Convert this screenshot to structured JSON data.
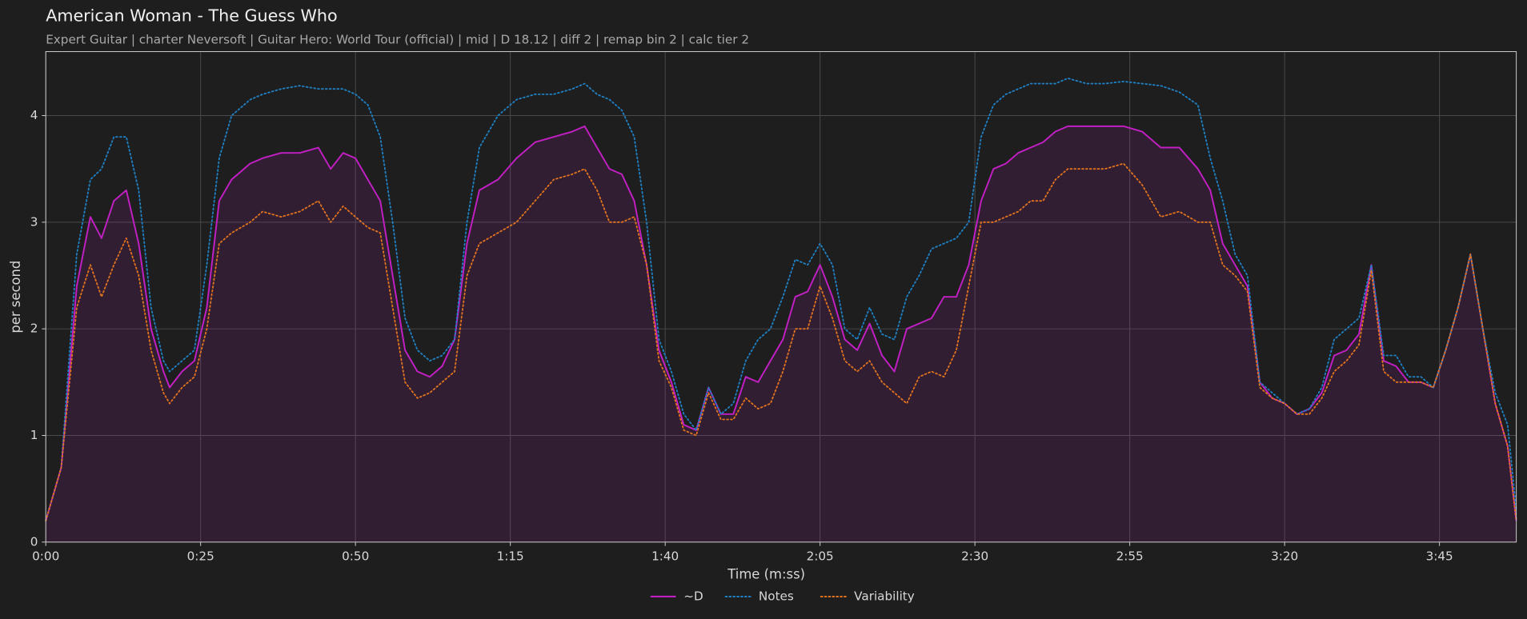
{
  "chart_data": {
    "type": "line",
    "title": "American Woman - The Guess Who",
    "subtitle": "Expert Guitar  |  charter Neversoft  |  Guitar Hero: World Tour (official)  |  mid  |  D 18.12  |  diff 2  |  remap bin 2  |  calc tier 2",
    "x_label": "Time (m:ss)",
    "y_label": "per second",
    "x": [
      0,
      2.5,
      5,
      7.2,
      9,
      11,
      13,
      15,
      17,
      19,
      20,
      22,
      24,
      26,
      28,
      30,
      33,
      35,
      38,
      41,
      44,
      46,
      48,
      50,
      52,
      54,
      56,
      58,
      60,
      62,
      64,
      66,
      68,
      70,
      73,
      76,
      79,
      82,
      85,
      87,
      89,
      91,
      93,
      95,
      97,
      99,
      101,
      103,
      105,
      107,
      109,
      111,
      113,
      115,
      117,
      119,
      121,
      123,
      125,
      127,
      129,
      131,
      133,
      135,
      137,
      139,
      141,
      143,
      145,
      147,
      149,
      151,
      153,
      155,
      157,
      159,
      161,
      163,
      165,
      168,
      171,
      174,
      177,
      180,
      183,
      186,
      188,
      190,
      192,
      194,
      196,
      198,
      200,
      202,
      204,
      206,
      208,
      210,
      212,
      214,
      216,
      218,
      220,
      222,
      224,
      226,
      228,
      230,
      232,
      234,
      236,
      237.4
    ],
    "series": [
      {
        "name": "~D",
        "color": "#c21fc4",
        "style": "solid",
        "values": [
          0.2,
          0.7,
          2.4,
          3.05,
          2.85,
          3.2,
          3.3,
          2.8,
          2.0,
          1.6,
          1.45,
          1.6,
          1.7,
          2.2,
          3.2,
          3.4,
          3.55,
          3.6,
          3.65,
          3.65,
          3.7,
          3.5,
          3.65,
          3.6,
          3.4,
          3.2,
          2.5,
          1.8,
          1.6,
          1.55,
          1.65,
          1.9,
          2.8,
          3.3,
          3.4,
          3.6,
          3.75,
          3.8,
          3.85,
          3.9,
          3.7,
          3.5,
          3.45,
          3.2,
          2.6,
          1.8,
          1.5,
          1.1,
          1.05,
          1.45,
          1.2,
          1.2,
          1.55,
          1.5,
          1.7,
          1.9,
          2.3,
          2.35,
          2.6,
          2.3,
          1.9,
          1.8,
          2.05,
          1.75,
          1.6,
          2.0,
          2.05,
          2.1,
          2.3,
          2.3,
          2.6,
          3.2,
          3.5,
          3.55,
          3.65,
          3.7,
          3.75,
          3.85,
          3.9,
          3.9,
          3.9,
          3.9,
          3.85,
          3.7,
          3.7,
          3.5,
          3.3,
          2.8,
          2.6,
          2.4,
          1.5,
          1.35,
          1.3,
          1.2,
          1.25,
          1.4,
          1.75,
          1.8,
          1.95,
          2.6,
          1.7,
          1.65,
          1.5,
          1.5,
          1.45,
          1.8,
          2.2,
          2.7,
          2.0,
          1.3,
          0.9,
          0.2
        ]
      },
      {
        "name": "Notes",
        "color": "#1f80c4",
        "style": "dotted",
        "values": [
          0.2,
          0.7,
          2.7,
          3.4,
          3.5,
          3.8,
          3.8,
          3.3,
          2.2,
          1.7,
          1.6,
          1.7,
          1.8,
          2.6,
          3.6,
          4.0,
          4.15,
          4.2,
          4.25,
          4.28,
          4.25,
          4.25,
          4.25,
          4.2,
          4.1,
          3.8,
          3.0,
          2.1,
          1.8,
          1.7,
          1.75,
          1.9,
          3.0,
          3.7,
          4.0,
          4.15,
          4.2,
          4.2,
          4.25,
          4.3,
          4.2,
          4.15,
          4.05,
          3.8,
          3.0,
          1.9,
          1.6,
          1.2,
          1.05,
          1.45,
          1.2,
          1.3,
          1.7,
          1.9,
          2.0,
          2.3,
          2.65,
          2.6,
          2.8,
          2.6,
          2.0,
          1.9,
          2.2,
          1.95,
          1.9,
          2.3,
          2.5,
          2.75,
          2.8,
          2.85,
          3.0,
          3.8,
          4.1,
          4.2,
          4.25,
          4.3,
          4.3,
          4.3,
          4.35,
          4.3,
          4.3,
          4.32,
          4.3,
          4.28,
          4.22,
          4.1,
          3.6,
          3.2,
          2.7,
          2.5,
          1.5,
          1.4,
          1.3,
          1.2,
          1.25,
          1.45,
          1.9,
          2.0,
          2.1,
          2.6,
          1.75,
          1.75,
          1.55,
          1.55,
          1.45,
          1.8,
          2.2,
          2.7,
          2.0,
          1.4,
          1.1,
          0.3
        ]
      },
      {
        "name": "Variability",
        "color": "#e0731f",
        "style": "dotted",
        "values": [
          0.2,
          0.7,
          2.2,
          2.6,
          2.3,
          2.6,
          2.85,
          2.5,
          1.8,
          1.4,
          1.3,
          1.45,
          1.55,
          2.0,
          2.8,
          2.9,
          3.0,
          3.1,
          3.05,
          3.1,
          3.2,
          3.0,
          3.15,
          3.05,
          2.95,
          2.9,
          2.2,
          1.5,
          1.35,
          1.4,
          1.5,
          1.6,
          2.5,
          2.8,
          2.9,
          3.0,
          3.2,
          3.4,
          3.45,
          3.5,
          3.3,
          3.0,
          3.0,
          3.05,
          2.6,
          1.7,
          1.45,
          1.05,
          1.0,
          1.4,
          1.15,
          1.15,
          1.35,
          1.25,
          1.3,
          1.6,
          2.0,
          2.0,
          2.4,
          2.1,
          1.7,
          1.6,
          1.7,
          1.5,
          1.4,
          1.3,
          1.55,
          1.6,
          1.55,
          1.8,
          2.4,
          3.0,
          3.0,
          3.05,
          3.1,
          3.2,
          3.2,
          3.4,
          3.5,
          3.5,
          3.5,
          3.55,
          3.35,
          3.05,
          3.1,
          3.0,
          3.0,
          2.6,
          2.5,
          2.35,
          1.45,
          1.35,
          1.3,
          1.2,
          1.2,
          1.35,
          1.6,
          1.7,
          1.85,
          2.55,
          1.6,
          1.5,
          1.5,
          1.5,
          1.45,
          1.8,
          2.2,
          2.7,
          2.0,
          1.3,
          0.9,
          0.2
        ]
      }
    ],
    "xlim": [
      0,
      237.4
    ],
    "ylim": [
      0,
      4.6
    ],
    "xticks": [
      {
        "value": 0,
        "label": "0:00"
      },
      {
        "value": 25,
        "label": "0:25"
      },
      {
        "value": 50,
        "label": "0:50"
      },
      {
        "value": 75,
        "label": "1:15"
      },
      {
        "value": 100,
        "label": "1:40"
      },
      {
        "value": 125,
        "label": "2:05"
      },
      {
        "value": 150,
        "label": "2:30"
      },
      {
        "value": 175,
        "label": "2:55"
      },
      {
        "value": 200,
        "label": "3:20"
      },
      {
        "value": 225,
        "label": "3:45"
      }
    ],
    "yticks": [
      0,
      1,
      2,
      3,
      4
    ],
    "grid": true,
    "legend": "bottom"
  }
}
